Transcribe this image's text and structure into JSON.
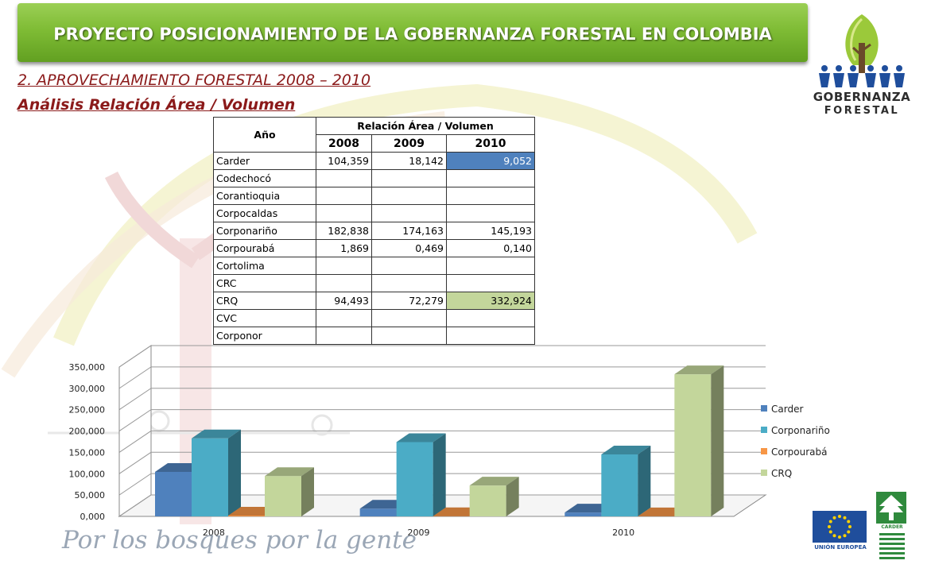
{
  "banner": {
    "title": "PROYECTO POSICIONAMIENTO DE LA GOBERNANZA FORESTAL EN COLOMBIA"
  },
  "subtitle1": "2. APROVECHAMIENTO FORESTAL 2008 – 2010",
  "subtitle2": "Análisis Relación Área / Volumen",
  "logo": {
    "line1": "GOBERNANZA",
    "line2": "FORESTAL"
  },
  "table": {
    "header_year": "Año",
    "header_group": "Relación Área / Volumen",
    "years": [
      "2008",
      "2009",
      "2010"
    ],
    "rows": [
      {
        "name": "Carder",
        "v2008": "104,359",
        "v2009": "18,142",
        "v2010": "9,052"
      },
      {
        "name": "Codechocó",
        "v2008": "",
        "v2009": "",
        "v2010": ""
      },
      {
        "name": "Corantioquia",
        "v2008": "",
        "v2009": "",
        "v2010": ""
      },
      {
        "name": "Corpocaldas",
        "v2008": "",
        "v2009": "",
        "v2010": ""
      },
      {
        "name": "Corponariño",
        "v2008": "182,838",
        "v2009": "174,163",
        "v2010": "145,193"
      },
      {
        "name": "Corpourabá",
        "v2008": "1,869",
        "v2009": "0,469",
        "v2010": "0,140"
      },
      {
        "name": "Cortolima",
        "v2008": "",
        "v2009": "",
        "v2010": ""
      },
      {
        "name": "CRC",
        "v2008": "",
        "v2009": "",
        "v2010": ""
      },
      {
        "name": "CRQ",
        "v2008": "94,493",
        "v2009": "72,279",
        "v2010": "332,924"
      },
      {
        "name": "CVC",
        "v2008": "",
        "v2009": "",
        "v2010": ""
      },
      {
        "name": "Corponor",
        "v2008": "",
        "v2009": "",
        "v2010": ""
      }
    ]
  },
  "chart_data": {
    "type": "bar",
    "categories": [
      "2008",
      "2009",
      "2010"
    ],
    "series": [
      {
        "name": "Carder",
        "values": [
          104.359,
          18.142,
          9.052
        ],
        "color": "#4f81bd"
      },
      {
        "name": "Corponariño",
        "values": [
          182.838,
          174.163,
          145.193
        ],
        "color": "#4bacc6"
      },
      {
        "name": "Corpourabá",
        "values": [
          1.869,
          0.469,
          0.14
        ],
        "color": "#f79646"
      },
      {
        "name": "CRQ",
        "values": [
          94.493,
          72.279,
          332.924
        ],
        "color": "#c3d69b"
      }
    ],
    "yticks": [
      "0,000",
      "50,000",
      "100,000",
      "150,000",
      "200,000",
      "250,000",
      "300,000",
      "350,000"
    ],
    "ylim": [
      0,
      350
    ],
    "legend_position": "right",
    "grid": true,
    "style": "3d-clustered-column"
  },
  "slogan": "Por los bosques por la gente",
  "footer": {
    "eu_label": "UNIÓN EUROPEA",
    "carder_label": "CARDER"
  }
}
